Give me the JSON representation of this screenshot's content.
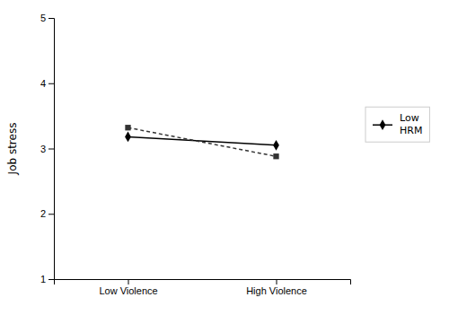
{
  "chart_data": {
    "type": "line",
    "categories": [
      "Low Violence",
      "High Violence"
    ],
    "series": [
      {
        "name": "Low\nHRM",
        "color": "#000000",
        "marker": "diamond",
        "line_style": "solid",
        "values": [
          3.18,
          3.05
        ]
      },
      {
        "color": "#333333",
        "marker": "square",
        "line_style": "dashed",
        "values": [
          3.32,
          2.88
        ]
      }
    ],
    "ylabel": "Job stress",
    "ylim": [
      1,
      5
    ],
    "yticks": [
      1,
      2,
      3,
      4,
      5
    ],
    "grid": false,
    "legend": "right"
  }
}
